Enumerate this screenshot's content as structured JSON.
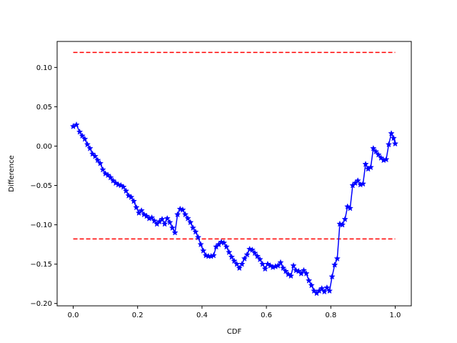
{
  "chart_data": {
    "type": "line",
    "title": "",
    "xlabel": "CDF",
    "ylabel": "Difference",
    "xlim": [
      -0.05,
      1.05
    ],
    "ylim": [
      -0.203,
      0.133
    ],
    "grid": false,
    "legend": "none",
    "x_ticks": [
      {
        "value": 0.0,
        "label": "0.0"
      },
      {
        "value": 0.2,
        "label": "0.2"
      },
      {
        "value": 0.4,
        "label": "0.4"
      },
      {
        "value": 0.6,
        "label": "0.6"
      },
      {
        "value": 0.8,
        "label": "0.8"
      },
      {
        "value": 1.0,
        "label": "1.0"
      }
    ],
    "y_ticks": [
      {
        "value": 0.1,
        "label": "0.10"
      },
      {
        "value": 0.05,
        "label": "0.05"
      },
      {
        "value": 0.0,
        "label": "0.00"
      },
      {
        "value": -0.05,
        "label": "−0.05"
      },
      {
        "value": -0.1,
        "label": "−0.10"
      },
      {
        "value": -0.15,
        "label": "−0.15"
      },
      {
        "value": -0.2,
        "label": "−0.20"
      }
    ],
    "reference_lines": [
      {
        "y": 0.119,
        "x_range": [
          0,
          1
        ],
        "color": "#ff0000",
        "style": "dashed"
      },
      {
        "y": -0.118,
        "x_range": [
          0,
          1
        ],
        "color": "#ff0000",
        "style": "dashed"
      }
    ],
    "series": [
      {
        "color": "#0000ff",
        "marker": "star",
        "points": [
          [
            0.0,
            0.025
          ],
          [
            0.01,
            0.027
          ],
          [
            0.02,
            0.018
          ],
          [
            0.028,
            0.013
          ],
          [
            0.036,
            0.009
          ],
          [
            0.044,
            0.002
          ],
          [
            0.052,
            -0.003
          ],
          [
            0.06,
            -0.01
          ],
          [
            0.068,
            -0.013
          ],
          [
            0.076,
            -0.018
          ],
          [
            0.084,
            -0.022
          ],
          [
            0.092,
            -0.03
          ],
          [
            0.1,
            -0.035
          ],
          [
            0.108,
            -0.037
          ],
          [
            0.116,
            -0.04
          ],
          [
            0.124,
            -0.044
          ],
          [
            0.132,
            -0.047
          ],
          [
            0.14,
            -0.049
          ],
          [
            0.148,
            -0.05
          ],
          [
            0.156,
            -0.052
          ],
          [
            0.164,
            -0.057
          ],
          [
            0.172,
            -0.063
          ],
          [
            0.18,
            -0.065
          ],
          [
            0.188,
            -0.07
          ],
          [
            0.196,
            -0.078
          ],
          [
            0.204,
            -0.085
          ],
          [
            0.212,
            -0.082
          ],
          [
            0.22,
            -0.087
          ],
          [
            0.228,
            -0.089
          ],
          [
            0.236,
            -0.092
          ],
          [
            0.244,
            -0.091
          ],
          [
            0.252,
            -0.095
          ],
          [
            0.26,
            -0.099
          ],
          [
            0.268,
            -0.096
          ],
          [
            0.276,
            -0.093
          ],
          [
            0.284,
            -0.099
          ],
          [
            0.292,
            -0.092
          ],
          [
            0.3,
            -0.097
          ],
          [
            0.308,
            -0.104
          ],
          [
            0.316,
            -0.11
          ],
          [
            0.324,
            -0.087
          ],
          [
            0.332,
            -0.08
          ],
          [
            0.34,
            -0.081
          ],
          [
            0.348,
            -0.087
          ],
          [
            0.356,
            -0.092
          ],
          [
            0.364,
            -0.097
          ],
          [
            0.372,
            -0.104
          ],
          [
            0.38,
            -0.109
          ],
          [
            0.388,
            -0.116
          ],
          [
            0.396,
            -0.125
          ],
          [
            0.404,
            -0.133
          ],
          [
            0.412,
            -0.139
          ],
          [
            0.42,
            -0.14
          ],
          [
            0.428,
            -0.14
          ],
          [
            0.436,
            -0.139
          ],
          [
            0.444,
            -0.128
          ],
          [
            0.452,
            -0.125
          ],
          [
            0.46,
            -0.122
          ],
          [
            0.468,
            -0.123
          ],
          [
            0.476,
            -0.128
          ],
          [
            0.484,
            -0.135
          ],
          [
            0.492,
            -0.141
          ],
          [
            0.5,
            -0.146
          ],
          [
            0.508,
            -0.15
          ],
          [
            0.516,
            -0.155
          ],
          [
            0.524,
            -0.15
          ],
          [
            0.532,
            -0.143
          ],
          [
            0.54,
            -0.138
          ],
          [
            0.548,
            -0.131
          ],
          [
            0.556,
            -0.132
          ],
          [
            0.564,
            -0.136
          ],
          [
            0.572,
            -0.14
          ],
          [
            0.58,
            -0.144
          ],
          [
            0.588,
            -0.15
          ],
          [
            0.596,
            -0.156
          ],
          [
            0.604,
            -0.15
          ],
          [
            0.612,
            -0.152
          ],
          [
            0.62,
            -0.154
          ],
          [
            0.628,
            -0.153
          ],
          [
            0.636,
            -0.152
          ],
          [
            0.644,
            -0.148
          ],
          [
            0.652,
            -0.155
          ],
          [
            0.66,
            -0.159
          ],
          [
            0.668,
            -0.163
          ],
          [
            0.676,
            -0.165
          ],
          [
            0.684,
            -0.152
          ],
          [
            0.692,
            -0.158
          ],
          [
            0.7,
            -0.159
          ],
          [
            0.708,
            -0.162
          ],
          [
            0.716,
            -0.158
          ],
          [
            0.724,
            -0.162
          ],
          [
            0.732,
            -0.171
          ],
          [
            0.74,
            -0.177
          ],
          [
            0.748,
            -0.184
          ],
          [
            0.756,
            -0.187
          ],
          [
            0.764,
            -0.184
          ],
          [
            0.772,
            -0.181
          ],
          [
            0.78,
            -0.185
          ],
          [
            0.788,
            -0.18
          ],
          [
            0.796,
            -0.184
          ],
          [
            0.804,
            -0.166
          ],
          [
            0.812,
            -0.151
          ],
          [
            0.82,
            -0.143
          ],
          [
            0.828,
            -0.099
          ],
          [
            0.836,
            -0.1
          ],
          [
            0.844,
            -0.093
          ],
          [
            0.852,
            -0.077
          ],
          [
            0.86,
            -0.079
          ],
          [
            0.868,
            -0.05
          ],
          [
            0.876,
            -0.047
          ],
          [
            0.884,
            -0.044
          ],
          [
            0.892,
            -0.049
          ],
          [
            0.9,
            -0.048
          ],
          [
            0.908,
            -0.023
          ],
          [
            0.916,
            -0.029
          ],
          [
            0.924,
            -0.027
          ],
          [
            0.932,
            -0.003
          ],
          [
            0.94,
            -0.007
          ],
          [
            0.948,
            -0.011
          ],
          [
            0.956,
            -0.015
          ],
          [
            0.964,
            -0.018
          ],
          [
            0.972,
            -0.017
          ],
          [
            0.98,
            0.002
          ],
          [
            0.988,
            0.016
          ],
          [
            0.995,
            0.01
          ],
          [
            1.0,
            0.003
          ]
        ]
      }
    ]
  }
}
